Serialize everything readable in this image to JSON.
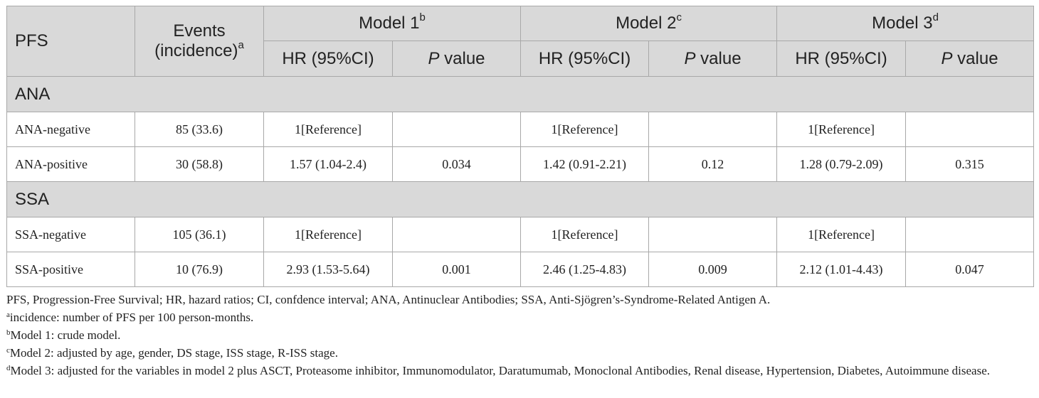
{
  "header": {
    "pfs": "PFS",
    "events_line1": "Events",
    "events_line2": "(incidence)",
    "events_sup": "a",
    "models": [
      {
        "label": "Model 1",
        "sup": "b"
      },
      {
        "label": "Model 2",
        "sup": "c"
      },
      {
        "label": "Model 3",
        "sup": "d"
      }
    ],
    "hr_label": "HR (95%CI)",
    "p_italic": "P",
    "p_rest": " value"
  },
  "groups": [
    {
      "name": "ANA",
      "rows": [
        {
          "label": "ANA-negative",
          "events": "85 (33.6)",
          "m1_hr": "1[Reference]",
          "m1_p": "",
          "m2_hr": "1[Reference]",
          "m2_p": "",
          "m3_hr": "1[Reference]",
          "m3_p": ""
        },
        {
          "label": "ANA-positive",
          "events": "30 (58.8)",
          "m1_hr": "1.57 (1.04-2.4)",
          "m1_p": "0.034",
          "m2_hr": "1.42 (0.91-2.21)",
          "m2_p": "0.12",
          "m3_hr": "1.28 (0.79-2.09)",
          "m3_p": "0.315"
        }
      ]
    },
    {
      "name": "SSA",
      "rows": [
        {
          "label": "SSA-negative",
          "events": "105 (36.1)",
          "m1_hr": "1[Reference]",
          "m1_p": "",
          "m2_hr": "1[Reference]",
          "m2_p": "",
          "m3_hr": "1[Reference]",
          "m3_p": ""
        },
        {
          "label": "SSA-positive",
          "events": "10 (76.9)",
          "m1_hr": "2.93 (1.53-5.64)",
          "m1_p": "0.001",
          "m2_hr": "2.46 (1.25-4.83)",
          "m2_p": "0.009",
          "m3_hr": "2.12 (1.01-4.43)",
          "m3_p": "0.047"
        }
      ]
    }
  ],
  "footnotes": {
    "abbrev": "PFS, Progression-Free Survival; HR, hazard ratios; CI, confdence interval; ANA, Antinuclear Antibodies; SSA, Anti-Sjögren’s-Syndrome-Related Antigen A.",
    "a_mark": "a",
    "a_text": "incidence: number of PFS per 100 person-months.",
    "b_mark": "b",
    "b_text": "Model 1: crude model.",
    "c_mark": "c",
    "c_text": "Model 2: adjusted by age, gender, DS stage, ISS stage, R-ISS stage.",
    "d_mark": "d",
    "d_text": "Model 3: adjusted for the variables in model 2 plus ASCT, Proteasome inhibitor, Immunomodulator, Daratumumab, Monoclonal Antibodies, Renal disease, Hypertension, Diabetes, Autoimmune disease."
  }
}
